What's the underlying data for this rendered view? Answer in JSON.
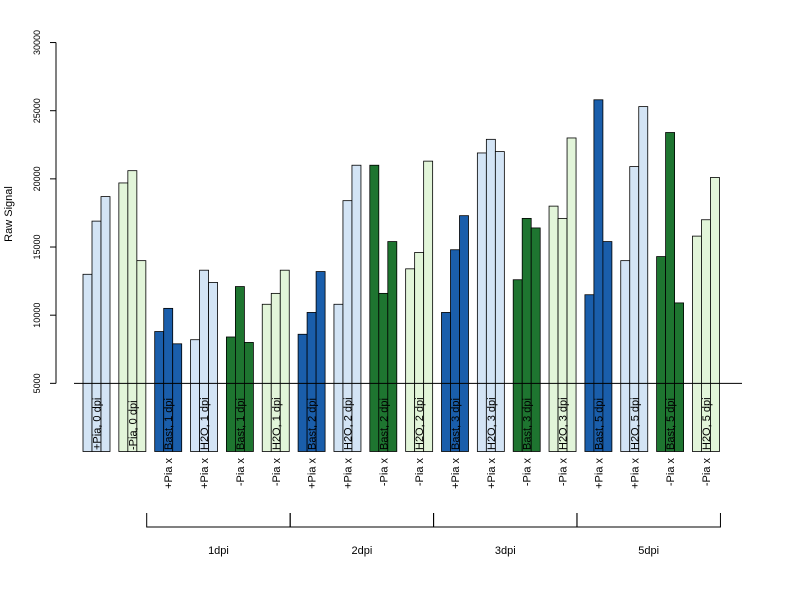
{
  "chart_data": {
    "type": "bar",
    "ylabel": "Raw Signal",
    "ylim": [
      0,
      30000
    ],
    "yticks": [
      5000,
      10000,
      15000,
      20000,
      25000,
      30000
    ],
    "baseline": 5000,
    "colors": {
      "pia_light": "#d3e4f5",
      "pia_dark": "#1a5eab",
      "npia_light": "#e2f5d9",
      "npia_dark": "#1e7530"
    },
    "groups": [
      {
        "label": "+Pia, 0 dpi",
        "sublabel": "",
        "color": "pia_light",
        "values": [
          13000,
          16900,
          18700
        ]
      },
      {
        "label": "-Pia, 0 dpi",
        "sublabel": "",
        "color": "npia_light",
        "values": [
          19700,
          20600,
          14000
        ]
      },
      {
        "label": "Bast, 1 dpi",
        "sublabel": "+Pia x",
        "color": "pia_dark",
        "values": [
          8800,
          10500,
          7900
        ]
      },
      {
        "label": "H2O, 1 dpi",
        "sublabel": "+Pia x",
        "color": "pia_light",
        "values": [
          8200,
          13300,
          12400
        ]
      },
      {
        "label": "Bast, 1 dpi",
        "sublabel": "-Pia x",
        "color": "npia_dark",
        "values": [
          8400,
          12100,
          8000
        ]
      },
      {
        "label": "H2O, 1 dpi",
        "sublabel": "-Pia x",
        "color": "npia_light",
        "values": [
          10800,
          11600,
          13300
        ]
      },
      {
        "label": "Bast, 2 dpi",
        "sublabel": "+Pia x",
        "color": "pia_dark",
        "values": [
          8600,
          10200,
          13200
        ]
      },
      {
        "label": "H2O, 2 dpi",
        "sublabel": "+Pia x",
        "color": "pia_light",
        "values": [
          10800,
          18400,
          21000
        ]
      },
      {
        "label": "Bast, 2 dpi",
        "sublabel": "-Pia x",
        "color": "npia_dark",
        "values": [
          21000,
          11600,
          15400
        ]
      },
      {
        "label": "H2O, 2 dpi",
        "sublabel": "-Pia x",
        "color": "npia_light",
        "values": [
          13400,
          14600,
          21300
        ]
      },
      {
        "label": "Bast, 3 dpi",
        "sublabel": "+Pia x",
        "color": "pia_dark",
        "values": [
          10200,
          14800,
          17300
        ]
      },
      {
        "label": "H2O, 3 dpi",
        "sublabel": "+Pia x",
        "color": "pia_light",
        "values": [
          21900,
          22900,
          22000
        ]
      },
      {
        "label": "Bast, 3 dpi",
        "sublabel": "-Pia x",
        "color": "npia_dark",
        "values": [
          12600,
          17100,
          16400
        ]
      },
      {
        "label": "H2O, 3 dpi",
        "sublabel": "-Pia x",
        "color": "npia_light",
        "values": [
          18000,
          17100,
          23000
        ]
      },
      {
        "label": "Bast, 5 dpi",
        "sublabel": "+Pia x",
        "color": "pia_dark",
        "values": [
          11500,
          25800,
          15400
        ]
      },
      {
        "label": "H2O, 5 dpi",
        "sublabel": "+Pia x",
        "color": "pia_light",
        "values": [
          14000,
          20900,
          25300
        ]
      },
      {
        "label": "Bast, 5 dpi",
        "sublabel": "-Pia x",
        "color": "npia_dark",
        "values": [
          14300,
          23400,
          10900
        ]
      },
      {
        "label": "H2O, 5 dpi",
        "sublabel": "-Pia x",
        "color": "npia_light",
        "values": [
          15800,
          17000,
          20100
        ]
      }
    ],
    "brackets": [
      {
        "label": "1dpi",
        "from_group": 2,
        "to_group": 5
      },
      {
        "label": "2dpi",
        "from_group": 6,
        "to_group": 9
      },
      {
        "label": "3dpi",
        "from_group": 10,
        "to_group": 13
      },
      {
        "label": "5dpi",
        "from_group": 14,
        "to_group": 17
      }
    ]
  }
}
